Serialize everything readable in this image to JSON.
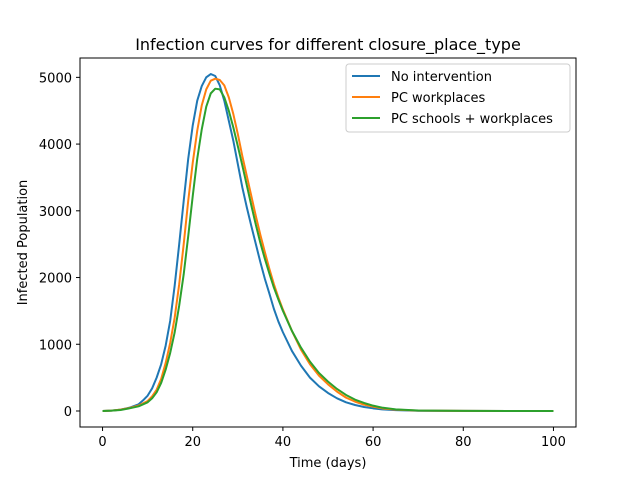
{
  "chart_data": {
    "type": "line",
    "title": "Infection curves for different closure_place_type",
    "xlabel": "Time (days)",
    "ylabel": "Infected Population",
    "xlim": [
      -5,
      105
    ],
    "ylim": [
      -240,
      5290
    ],
    "xticks": [
      0,
      20,
      40,
      60,
      80,
      100
    ],
    "yticks": [
      0,
      1000,
      2000,
      3000,
      4000,
      5000
    ],
    "grid": false,
    "legend_position": "top-right",
    "series": [
      {
        "name": "No intervention",
        "color": "#1f77b4",
        "points": [
          [
            0,
            0
          ],
          [
            2,
            5
          ],
          [
            4,
            20
          ],
          [
            6,
            50
          ],
          [
            8,
            100
          ],
          [
            9,
            160
          ],
          [
            10,
            230
          ],
          [
            11,
            340
          ],
          [
            12,
            500
          ],
          [
            13,
            700
          ],
          [
            14,
            980
          ],
          [
            15,
            1350
          ],
          [
            16,
            1880
          ],
          [
            17,
            2500
          ],
          [
            18,
            3150
          ],
          [
            19,
            3780
          ],
          [
            20,
            4280
          ],
          [
            21,
            4650
          ],
          [
            22,
            4870
          ],
          [
            23,
            5000
          ],
          [
            24,
            5050
          ],
          [
            25,
            5020
          ],
          [
            26,
            4880
          ],
          [
            27,
            4650
          ],
          [
            28,
            4350
          ],
          [
            29,
            4050
          ],
          [
            30,
            3700
          ],
          [
            31,
            3350
          ],
          [
            32,
            3050
          ],
          [
            33,
            2770
          ],
          [
            34,
            2500
          ],
          [
            35,
            2230
          ],
          [
            36,
            1980
          ],
          [
            37,
            1760
          ],
          [
            38,
            1530
          ],
          [
            39,
            1340
          ],
          [
            40,
            1180
          ],
          [
            42,
            900
          ],
          [
            44,
            680
          ],
          [
            46,
            500
          ],
          [
            48,
            370
          ],
          [
            50,
            270
          ],
          [
            52,
            190
          ],
          [
            54,
            130
          ],
          [
            56,
            90
          ],
          [
            58,
            60
          ],
          [
            60,
            40
          ],
          [
            62,
            25
          ],
          [
            65,
            12
          ],
          [
            70,
            4
          ],
          [
            80,
            1
          ],
          [
            90,
            0
          ],
          [
            100,
            0
          ]
        ]
      },
      {
        "name": "PC workplaces",
        "color": "#ff7f0e",
        "points": [
          [
            0,
            0
          ],
          [
            2,
            5
          ],
          [
            4,
            20
          ],
          [
            6,
            45
          ],
          [
            8,
            80
          ],
          [
            10,
            150
          ],
          [
            11,
            220
          ],
          [
            12,
            320
          ],
          [
            13,
            480
          ],
          [
            14,
            720
          ],
          [
            15,
            1020
          ],
          [
            16,
            1400
          ],
          [
            17,
            1900
          ],
          [
            18,
            2500
          ],
          [
            19,
            3150
          ],
          [
            20,
            3720
          ],
          [
            21,
            4200
          ],
          [
            22,
            4580
          ],
          [
            23,
            4820
          ],
          [
            24,
            4950
          ],
          [
            25,
            4980
          ],
          [
            26,
            4960
          ],
          [
            27,
            4880
          ],
          [
            28,
            4700
          ],
          [
            29,
            4450
          ],
          [
            30,
            4150
          ],
          [
            31,
            3820
          ],
          [
            32,
            3520
          ],
          [
            33,
            3220
          ],
          [
            34,
            2920
          ],
          [
            35,
            2640
          ],
          [
            36,
            2380
          ],
          [
            37,
            2130
          ],
          [
            38,
            1900
          ],
          [
            39,
            1700
          ],
          [
            40,
            1520
          ],
          [
            42,
            1200
          ],
          [
            44,
            920
          ],
          [
            46,
            700
          ],
          [
            48,
            530
          ],
          [
            50,
            400
          ],
          [
            52,
            290
          ],
          [
            54,
            200
          ],
          [
            56,
            140
          ],
          [
            58,
            95
          ],
          [
            60,
            65
          ],
          [
            62,
            40
          ],
          [
            65,
            20
          ],
          [
            70,
            6
          ],
          [
            80,
            1
          ],
          [
            90,
            0
          ],
          [
            100,
            0
          ]
        ]
      },
      {
        "name": "PC schools + workplaces",
        "color": "#2ca02c",
        "points": [
          [
            0,
            0
          ],
          [
            2,
            5
          ],
          [
            4,
            15
          ],
          [
            6,
            40
          ],
          [
            8,
            70
          ],
          [
            10,
            130
          ],
          [
            11,
            190
          ],
          [
            12,
            280
          ],
          [
            13,
            420
          ],
          [
            14,
            620
          ],
          [
            15,
            870
          ],
          [
            16,
            1180
          ],
          [
            17,
            1580
          ],
          [
            18,
            2050
          ],
          [
            19,
            2620
          ],
          [
            20,
            3220
          ],
          [
            21,
            3780
          ],
          [
            22,
            4220
          ],
          [
            23,
            4560
          ],
          [
            24,
            4760
          ],
          [
            25,
            4830
          ],
          [
            26,
            4820
          ],
          [
            27,
            4700
          ],
          [
            28,
            4500
          ],
          [
            29,
            4250
          ],
          [
            30,
            3970
          ],
          [
            31,
            3680
          ],
          [
            32,
            3380
          ],
          [
            33,
            3080
          ],
          [
            34,
            2790
          ],
          [
            35,
            2520
          ],
          [
            36,
            2280
          ],
          [
            37,
            2060
          ],
          [
            38,
            1850
          ],
          [
            39,
            1670
          ],
          [
            40,
            1500
          ],
          [
            42,
            1200
          ],
          [
            44,
            950
          ],
          [
            46,
            740
          ],
          [
            48,
            570
          ],
          [
            50,
            440
          ],
          [
            52,
            330
          ],
          [
            54,
            240
          ],
          [
            56,
            170
          ],
          [
            58,
            120
          ],
          [
            60,
            80
          ],
          [
            62,
            50
          ],
          [
            65,
            25
          ],
          [
            70,
            8
          ],
          [
            80,
            2
          ],
          [
            90,
            0
          ],
          [
            100,
            0
          ]
        ]
      }
    ]
  }
}
